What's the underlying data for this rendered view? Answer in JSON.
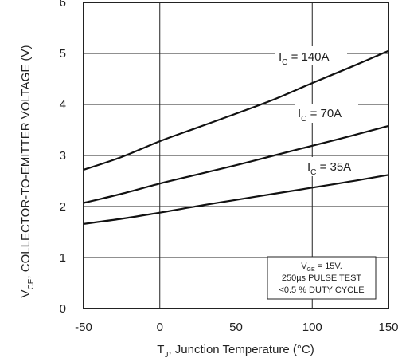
{
  "chart_data": {
    "type": "line",
    "xlabel": "T_J, Junction Temperature (°C)",
    "xlabel_main": "T",
    "xlabel_sub": "J",
    "xlabel_rest": ", Junction Temperature (°C)",
    "ylabel": "V_CE, COLLECTOR-TO-EMITTER VOLTAGE (V)",
    "ylabel_main": "V",
    "ylabel_sub": "CE",
    "ylabel_rest": ", COLLECTOR-TO-EMITTER VOLTAGE (V)",
    "xlim": [
      -50,
      150
    ],
    "ylim": [
      0,
      6
    ],
    "xticks": [
      -50,
      0,
      50,
      100,
      150
    ],
    "yticks": [
      0,
      1,
      2,
      3,
      4,
      5,
      6
    ],
    "grid": true,
    "series": [
      {
        "name": "I_C = 140A",
        "label_main": "I",
        "label_sub": "C",
        "label_rest": " = 140A",
        "x": [
          -50,
          -25,
          0,
          25,
          50,
          75,
          100,
          125,
          150
        ],
        "y": [
          2.72,
          2.97,
          3.28,
          3.55,
          3.82,
          4.1,
          4.42,
          4.73,
          5.05
        ]
      },
      {
        "name": "I_C = 70A",
        "label_main": "I",
        "label_sub": "C",
        "label_rest": " = 70A",
        "x": [
          -50,
          -25,
          0,
          25,
          50,
          75,
          100,
          125,
          150
        ],
        "y": [
          2.07,
          2.25,
          2.45,
          2.63,
          2.81,
          3.0,
          3.19,
          3.38,
          3.58
        ]
      },
      {
        "name": "I_C = 35A",
        "label_main": "I",
        "label_sub": "C",
        "label_rest": " = 35A",
        "x": [
          -50,
          -25,
          0,
          25,
          50,
          75,
          100,
          125,
          150
        ],
        "y": [
          1.66,
          1.76,
          1.88,
          2.01,
          2.13,
          2.25,
          2.37,
          2.49,
          2.62
        ]
      }
    ],
    "annotation": {
      "line1_main": "V",
      "line1_sub": "GE",
      "line1_rest": " = 15V.",
      "line2": "250µs PULSE TEST",
      "line3": "<0.5 % DUTY CYCLE"
    }
  }
}
